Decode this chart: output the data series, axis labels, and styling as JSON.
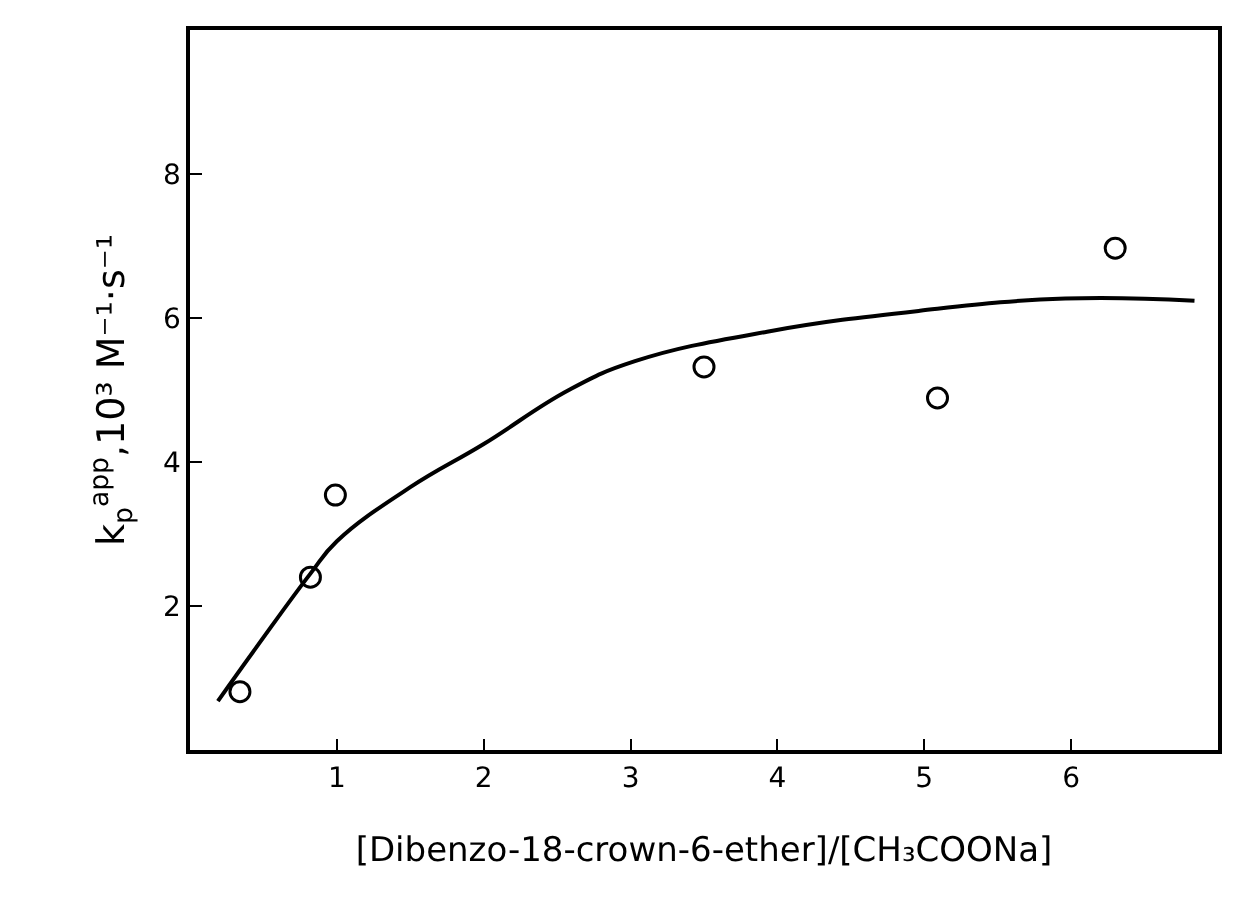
{
  "chart_data": {
    "type": "scatter",
    "xlabel": "[Dibenzo-18-crown-6-ether]/[CH₃COONa]",
    "ylabel": "k$_{p}$$^{app}$,10³ M⁻¹·s⁻¹",
    "xlim": [
      0,
      7
    ],
    "xticks": [
      1,
      2,
      3,
      4,
      5,
      6
    ],
    "ylim": [
      0,
      10
    ],
    "yticks": [
      2,
      4,
      6,
      8
    ],
    "series": [
      {
        "marker": "circle",
        "color": "#000000",
        "x": [
          0.34,
          0.82,
          0.99,
          3.5,
          5.09,
          6.3
        ],
        "values": [
          0.81,
          2.4,
          3.54,
          5.32,
          4.89,
          6.97
        ]
      },
      {
        "type": "line",
        "marker": "none",
        "line_style": "solid",
        "color": "#000000",
        "x": [
          0.19,
          0.46,
          0.82,
          1.0,
          1.5,
          2.0,
          2.58,
          3.03,
          3.93,
          4.97,
          5.96,
          6.84
        ],
        "values": [
          0.68,
          1.45,
          2.45,
          2.9,
          3.65,
          4.25,
          5.0,
          5.4,
          5.81,
          6.1,
          6.27,
          6.24
        ]
      }
    ]
  }
}
